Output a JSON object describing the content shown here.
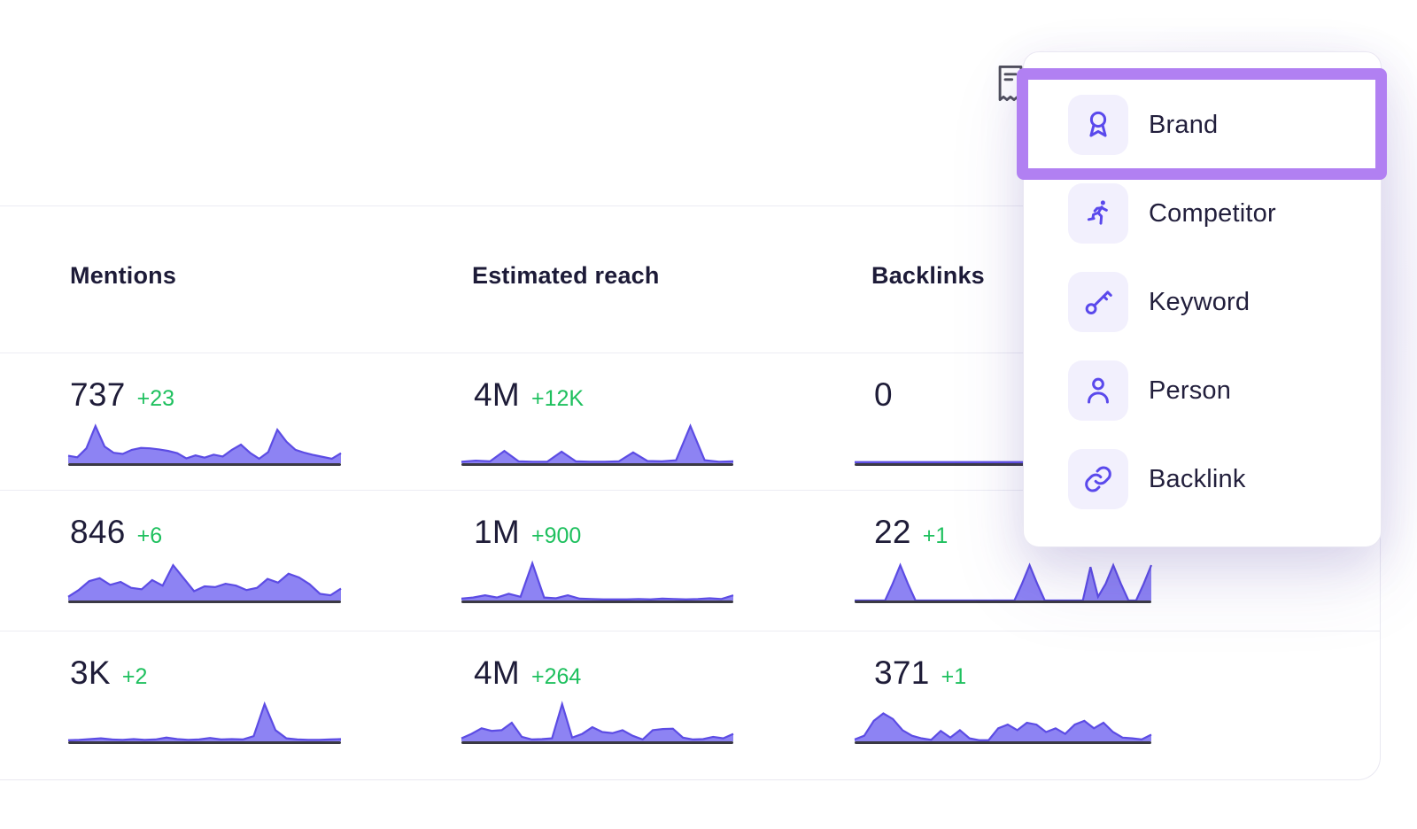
{
  "table": {
    "headers": [
      {
        "label": "Mentions"
      },
      {
        "label": "Estimated reach"
      },
      {
        "label": "Backlinks"
      }
    ],
    "rows": [
      {
        "cells": [
          {
            "value": "737",
            "delta": "+23"
          },
          {
            "value": "4M",
            "delta": "+12K"
          },
          {
            "value": "0",
            "delta": ""
          }
        ]
      },
      {
        "cells": [
          {
            "value": "846",
            "delta": "+6"
          },
          {
            "value": "1M",
            "delta": "+900"
          },
          {
            "value": "22",
            "delta": "+1"
          }
        ]
      },
      {
        "cells": [
          {
            "value": "3K",
            "delta": "+2"
          },
          {
            "value": "4M",
            "delta": "+264"
          },
          {
            "value": "371",
            "delta": "+1"
          }
        ]
      }
    ]
  },
  "dropdown": {
    "items": [
      {
        "label": "Brand",
        "icon": "award-icon",
        "selected": true
      },
      {
        "label": "Competitor",
        "icon": "runner-icon",
        "selected": false
      },
      {
        "label": "Keyword",
        "icon": "key-icon",
        "selected": false
      },
      {
        "label": "Person",
        "icon": "person-icon",
        "selected": false
      },
      {
        "label": "Backlink",
        "icon": "link-icon",
        "selected": false
      }
    ]
  },
  "colors": {
    "highlight_purple": "#b180f2",
    "icon_purple": "#5a49ec",
    "icon_tile_bg": "#f2f0fd",
    "spark_fill": "#8378f2",
    "spark_stroke": "#5c4ce4",
    "spark_baseline": "#3a3944",
    "delta_green": "#1ec05e",
    "text_dark": "#1e1c38",
    "divider": "#ececf3"
  },
  "chart_data": [
    {
      "type": "area",
      "metric": "Mentions",
      "value_label": "737",
      "delta": "+23",
      "values": [
        20,
        16,
        40,
        100,
        45,
        28,
        25,
        36,
        41,
        40,
        37,
        33,
        27,
        13,
        21,
        15,
        23,
        18,
        36,
        50,
        28,
        12,
        30,
        90,
        58,
        36,
        28,
        22,
        17,
        12,
        27
      ]
    },
    {
      "type": "area",
      "metric": "Estimated reach",
      "value_label": "4M",
      "delta": "+12K",
      "values": [
        4,
        7,
        5,
        33,
        5,
        4,
        4,
        31,
        5,
        4,
        4,
        5,
        29,
        6,
        5,
        8,
        100,
        8,
        4,
        5
      ]
    },
    {
      "type": "area",
      "metric": "Backlinks",
      "value_label": "0",
      "delta": "",
      "values": [
        3,
        3,
        3,
        3,
        3,
        3,
        3,
        3,
        3,
        3
      ]
    },
    {
      "type": "area",
      "metric": "Mentions",
      "value_label": "846",
      "delta": "+6",
      "values": [
        10,
        28,
        52,
        60,
        42,
        50,
        34,
        30,
        55,
        40,
        95,
        60,
        25,
        38,
        36,
        45,
        40,
        28,
        34,
        58,
        48,
        72,
        62,
        44,
        18,
        14,
        32
      ]
    },
    {
      "type": "area",
      "metric": "Estimated reach",
      "value_label": "1M",
      "delta": "+900",
      "values": [
        5,
        8,
        14,
        8,
        18,
        10,
        100,
        8,
        6,
        14,
        5,
        4,
        3,
        3,
        3,
        4,
        3,
        5,
        4,
        3,
        4,
        6,
        4,
        14
      ]
    },
    {
      "type": "area",
      "metric": "Backlinks",
      "value_label": "22",
      "delta": "+1",
      "values": [
        0,
        0,
        0,
        0,
        0,
        45,
        95,
        45,
        0,
        0,
        0,
        0,
        0,
        0,
        0,
        0,
        0,
        0,
        0,
        0,
        0,
        0,
        45,
        95,
        45,
        0,
        0,
        0,
        0,
        0,
        0,
        90,
        10,
        45,
        95,
        45,
        0,
        0,
        45,
        95
      ]
    },
    {
      "type": "area",
      "metric": "Mentions",
      "value_label": "3K",
      "delta": "+2",
      "values": [
        3,
        4,
        6,
        8,
        5,
        4,
        6,
        4,
        5,
        10,
        6,
        4,
        5,
        9,
        5,
        6,
        5,
        14,
        100,
        30,
        8,
        5,
        4,
        4,
        5,
        6
      ]
    },
    {
      "type": "area",
      "metric": "Estimated reach",
      "value_label": "4M",
      "delta": "+264",
      "values": [
        8,
        20,
        35,
        28,
        30,
        50,
        12,
        5,
        6,
        8,
        100,
        10,
        20,
        38,
        25,
        22,
        30,
        15,
        5,
        30,
        33,
        34,
        10,
        5,
        6,
        12,
        8,
        20
      ]
    },
    {
      "type": "area",
      "metric": "Backlinks",
      "value_label": "371",
      "delta": "+1",
      "values": [
        5,
        15,
        55,
        75,
        60,
        30,
        15,
        8,
        4,
        28,
        10,
        30,
        8,
        3,
        3,
        35,
        45,
        30,
        50,
        45,
        25,
        35,
        20,
        45,
        55,
        35,
        50,
        25,
        10,
        8,
        5,
        18
      ]
    }
  ]
}
